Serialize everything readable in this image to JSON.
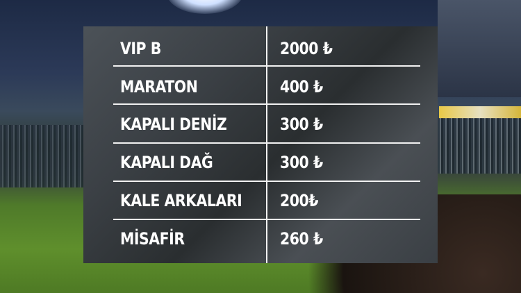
{
  "prices": [
    {
      "section": "VIP B",
      "price": "2000 ₺"
    },
    {
      "section": "MARATON",
      "price": "400 ₺"
    },
    {
      "section": "KAPALI DENİZ",
      "price": "300 ₺"
    },
    {
      "section": "KAPALI DAĞ",
      "price": "300 ₺"
    },
    {
      "section": "KALE ARKALARI",
      "price": "200₺"
    },
    {
      "section": "MİSAFİR",
      "price": "260 ₺"
    }
  ],
  "colors": {
    "text": "#ffffff",
    "divider": "#f2f2f2",
    "panel": "#3b4045"
  }
}
